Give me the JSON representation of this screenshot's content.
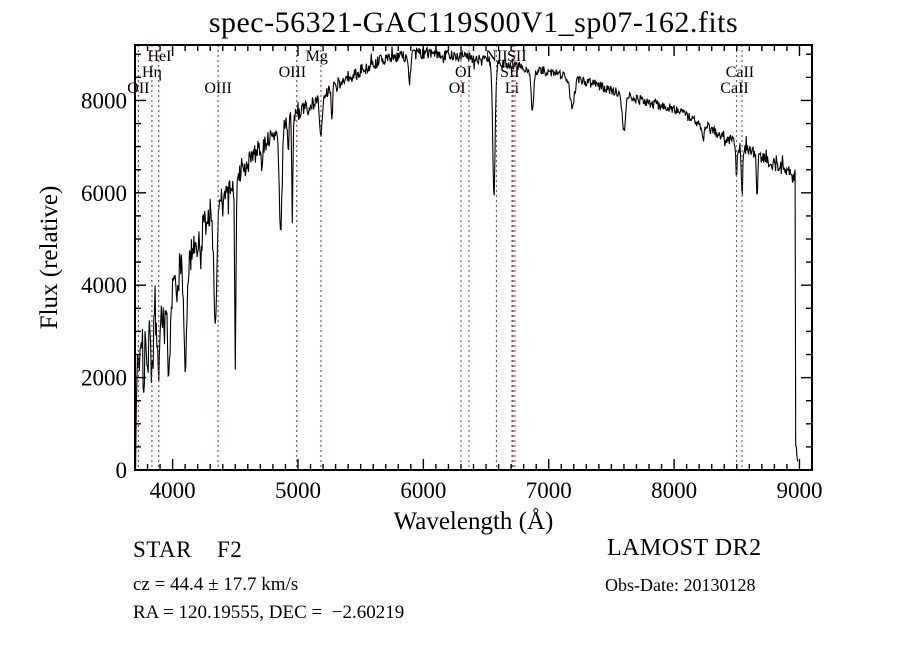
{
  "title": "spec-56321-GAC119S00V1_sp07-162.fits",
  "annotations": {
    "class_label": "STAR    F2",
    "cz": "cz = 44.4 ± 17.7 km/s",
    "radec": "RA = 120.19555, DEC =  −2.60219",
    "survey": "LAMOST DR2",
    "obs_date": "Obs-Date: 20130128"
  },
  "chart_data": {
    "type": "line",
    "title": "spec-56321-GAC119S00V1_sp07-162.fits",
    "xlabel": "Wavelength (Å)",
    "ylabel": "Flux (relative)",
    "xlim": [
      3700,
      9100
    ],
    "ylim": [
      0,
      9200
    ],
    "x_ticks": [
      4000,
      5000,
      6000,
      7000,
      8000,
      9000
    ],
    "y_ticks": [
      0,
      2000,
      4000,
      6000,
      8000
    ],
    "x_minor_step": 100,
    "y_minor_step": 500,
    "grid": false,
    "legend": "none",
    "trace_color": "#000000",
    "marker_color": "#964444",
    "line_markers": [
      3727,
      3835,
      3889,
      4363,
      4990,
      5183,
      6300,
      6364,
      6583,
      6707,
      6716,
      6731,
      8498,
      8542
    ],
    "line_labels": [
      {
        "text": "OII",
        "wavelength": 3727,
        "row": 3
      },
      {
        "text": "Hη",
        "wavelength": 3835,
        "row": 2
      },
      {
        "text": "HeI",
        "wavelength": 3895,
        "row": 1
      },
      {
        "text": "OIII",
        "wavelength": 4363,
        "row": 3
      },
      {
        "text": "OIII",
        "wavelength": 4955,
        "row": 2
      },
      {
        "text": "Mg",
        "wavelength": 5150,
        "row": 1
      },
      {
        "text": "OI",
        "wavelength": 6320,
        "row": 2
      },
      {
        "text": "OI",
        "wavelength": 6270,
        "row": 3
      },
      {
        "text": "NII",
        "wavelength": 6583,
        "row": 1
      },
      {
        "text": "SII",
        "wavelength": 6745,
        "row": 1
      },
      {
        "text": "SII",
        "wavelength": 6690,
        "row": 2
      },
      {
        "text": "Li",
        "wavelength": 6707,
        "row": 3
      },
      {
        "text": "CaII",
        "wavelength": 8525,
        "row": 2
      },
      {
        "text": "CaII",
        "wavelength": 8482,
        "row": 3
      }
    ],
    "label_rows_y": [
      61,
      77,
      93
    ],
    "spectrum": {
      "range": [
        3705,
        8988
      ],
      "step": 5,
      "seed": 77,
      "peak_flux": 9000,
      "continuum": [
        [
          3700,
          2250
        ],
        [
          3760,
          2950
        ],
        [
          3820,
          3250
        ],
        [
          3900,
          3650
        ],
        [
          3980,
          3950
        ],
        [
          4100,
          4450
        ],
        [
          4250,
          5250
        ],
        [
          4400,
          5850
        ],
        [
          4550,
          6450
        ],
        [
          4700,
          7000
        ],
        [
          4850,
          7400
        ],
        [
          5000,
          7700
        ],
        [
          5200,
          8100
        ],
        [
          5400,
          8500
        ],
        [
          5600,
          8800
        ],
        [
          5800,
          8950
        ],
        [
          6000,
          9020
        ],
        [
          6200,
          8980
        ],
        [
          6400,
          8920
        ],
        [
          6600,
          8840
        ],
        [
          6800,
          8720
        ],
        [
          7000,
          8620
        ],
        [
          7200,
          8470
        ],
        [
          7400,
          8320
        ],
        [
          7600,
          8120
        ],
        [
          7800,
          7950
        ],
        [
          8000,
          7820
        ],
        [
          8200,
          7520
        ],
        [
          8400,
          7220
        ],
        [
          8600,
          6920
        ],
        [
          8800,
          6620
        ],
        [
          8950,
          6380
        ],
        [
          8988,
          6280
        ]
      ],
      "absorption_lines": [
        [
          3712,
          0.25,
          6
        ],
        [
          3734,
          0.3,
          7
        ],
        [
          3771,
          0.28,
          7
        ],
        [
          3798,
          0.32,
          8
        ],
        [
          3835,
          0.42,
          9
        ],
        [
          3889,
          0.46,
          10
        ],
        [
          3934,
          0.28,
          7
        ],
        [
          3970,
          0.48,
          11
        ],
        [
          4026,
          0.12,
          6
        ],
        [
          4101,
          0.48,
          12
        ],
        [
          4226,
          0.14,
          6
        ],
        [
          4340,
          0.42,
          12
        ],
        [
          4500,
          0.66,
          5
        ],
        [
          4713,
          0.08,
          6
        ],
        [
          4861,
          0.31,
          11
        ],
        [
          4922,
          0.08,
          6
        ],
        [
          4955,
          0.3,
          4
        ],
        [
          5183,
          0.11,
          11
        ],
        [
          5270,
          0.08,
          6
        ],
        [
          5890,
          0.07,
          8
        ],
        [
          6563,
          0.33,
          10
        ],
        [
          6870,
          0.1,
          11
        ],
        [
          7186,
          0.07,
          18
        ],
        [
          7600,
          0.1,
          13
        ],
        [
          8230,
          0.05,
          9
        ],
        [
          8498,
          0.1,
          6
        ],
        [
          8542,
          0.15,
          6
        ],
        [
          8662,
          0.13,
          6
        ]
      ],
      "noise_envelope": [
        [
          3705,
          1400
        ],
        [
          3730,
          850
        ],
        [
          3800,
          700
        ],
        [
          3900,
          580
        ],
        [
          4000,
          500
        ],
        [
          4150,
          400
        ],
        [
          4350,
          300
        ],
        [
          4600,
          220
        ],
        [
          4900,
          180
        ],
        [
          5200,
          160
        ],
        [
          5600,
          140
        ],
        [
          6000,
          125
        ],
        [
          6500,
          110
        ],
        [
          7000,
          105
        ],
        [
          7600,
          105
        ],
        [
          8100,
          110
        ],
        [
          8500,
          120
        ],
        [
          8800,
          135
        ],
        [
          8988,
          145
        ]
      ],
      "spike_prob": 0.035,
      "spike_gain": 2.2,
      "end_cutoff": {
        "wavelength": 8966,
        "base": 120,
        "jitter": 800
      }
    }
  }
}
